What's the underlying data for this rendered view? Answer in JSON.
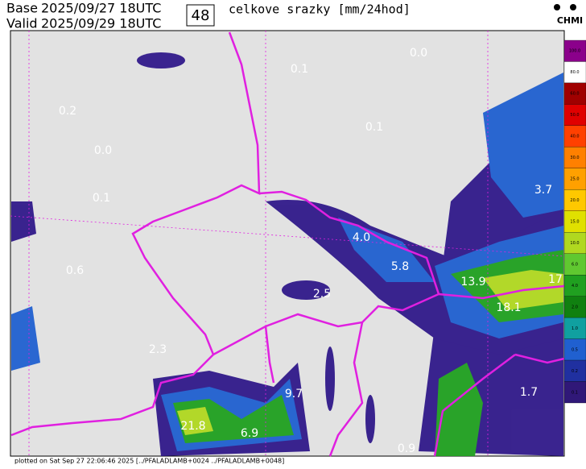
{
  "header": {
    "base_label": "Base",
    "base_time": "2025/09/27 18UTC",
    "valid_label": "Valid",
    "valid_time": "2025/09/29 18UTC",
    "lead": "48",
    "title": "celkove srazky [mm/24hod]",
    "logo": "CHMI"
  },
  "map_labels": [
    "0.0",
    "0.1",
    "0.2",
    "0.1",
    "0.0",
    "0.1",
    "3.7",
    "4.0",
    "5.8",
    "0.6",
    "13.9",
    "17",
    "2.5",
    "18.1",
    "2.3",
    "9.7",
    "21.8",
    "6.9",
    "1.7",
    "0.9"
  ],
  "legend": {
    "colors": [
      "#8b008b",
      "#ffffff",
      "#a00000",
      "#e00000",
      "#ff4000",
      "#ff8000",
      "#ffa000",
      "#ffc800",
      "#e0e000",
      "#b0d820",
      "#60c830",
      "#20a020",
      "#108010",
      "#10a0a0",
      "#2060d0",
      "#2030a0",
      "#301878"
    ],
    "labels": [
      "100.0",
      "80.0",
      "60.0",
      "50.0",
      "40.0",
      "30.0",
      "25.0",
      "20.0",
      "15.0",
      "10.0",
      "6.0",
      "4.0",
      "2.0",
      "1.0",
      "0.5",
      "0.2",
      "0.1"
    ]
  },
  "footer": "plotted on Sat Sep 27 22:06:46 2025 [../PFALADLAMB+0024 ../PFALADLAMB+0048]"
}
